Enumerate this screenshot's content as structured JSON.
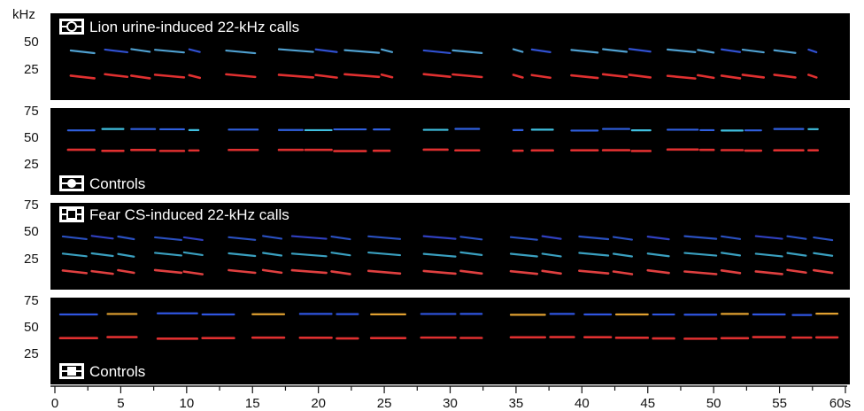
{
  "y_unit": "kHz",
  "x_axis": {
    "ticks": [
      "0",
      "5",
      "10",
      "15",
      "20",
      "25",
      "30",
      "35",
      "40",
      "45",
      "50",
      "55",
      "60s"
    ]
  },
  "panels": [
    {
      "label": "Lion urine-induced 22-kHz calls",
      "marker": "open-circle",
      "y_ticks": [
        "50",
        "25"
      ],
      "bands": [
        {
          "freq": 17,
          "color": "#e03030"
        },
        {
          "freq": 35,
          "color": "#4fa0d0"
        }
      ],
      "secondary_color": "#3050d0"
    },
    {
      "label": "Controls",
      "marker": "filled-circle",
      "y_ticks": [
        "75",
        "50",
        "25"
      ],
      "bands": [
        {
          "freq": 43,
          "color": "#e03030"
        },
        {
          "freq": 63,
          "color": "#3060e0"
        }
      ],
      "secondary_color": "#40c0e0"
    },
    {
      "label": "Fear CS-induced 22-kHz calls",
      "marker": "open-square",
      "y_ticks": [
        "75",
        "50",
        "25"
      ],
      "bands": [
        {
          "freq": 17,
          "color": "#e04040"
        },
        {
          "freq": 34,
          "color": "#3aa0c0"
        },
        {
          "freq": 50,
          "color": "#2a50c0"
        }
      ],
      "secondary_color": "#3040c0"
    },
    {
      "label": "Controls",
      "marker": "filled-square",
      "y_ticks": [
        "75",
        "50",
        "25"
      ],
      "bands": [
        {
          "freq": 45,
          "color": "#e03030"
        },
        {
          "freq": 68,
          "color": "#2f55e0"
        }
      ],
      "secondary_color": "#e0a030"
    }
  ]
}
